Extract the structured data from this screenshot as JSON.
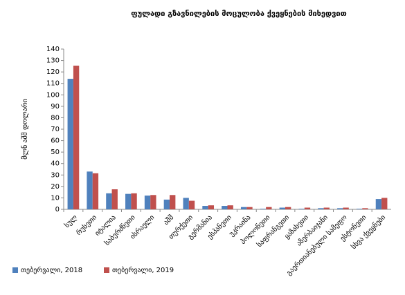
{
  "chart_data": {
    "type": "bar",
    "title": "ფულადი გზავნილების მოცულობა ქვეყნების მიხედვით",
    "y_label": "მლნ აშშ დოლარი",
    "categories": [
      "სულ",
      "რუსეთი",
      "იტალია",
      "საბერძნეთი",
      "ისრაელი",
      "აშშ",
      "თურქეთი",
      "გერმანია",
      "ესპანეთი",
      "უკრაინა",
      "პოლონეთი",
      "საფრანგეთი",
      "ყაზახეთი",
      "აზერბაიჯანი",
      "გაერთიანებული სამეფო",
      "ესტონეთი",
      "სხვა ქვეყნები"
    ],
    "series": [
      {
        "name": "თებერვალი, 2018",
        "color": "#4f81bd",
        "values": [
          114,
          33,
          14,
          13.5,
          12,
          8.5,
          10,
          3,
          3,
          2,
          0.5,
          1.5,
          0.5,
          1,
          1,
          0.5,
          9
        ]
      },
      {
        "name": "თებერვალი, 2019",
        "color": "#c0504d",
        "values": [
          125.5,
          31.5,
          17.5,
          14,
          12.5,
          12.5,
          7.5,
          3.5,
          3.5,
          2,
          2,
          2,
          1.5,
          1.5,
          1.5,
          1,
          10
        ]
      }
    ],
    "ylim": [
      0,
      140
    ],
    "yticks": [
      0,
      10,
      20,
      30,
      40,
      50,
      60,
      70,
      80,
      90,
      100,
      110,
      120,
      130,
      140
    ],
    "legend": "bottom-left"
  }
}
